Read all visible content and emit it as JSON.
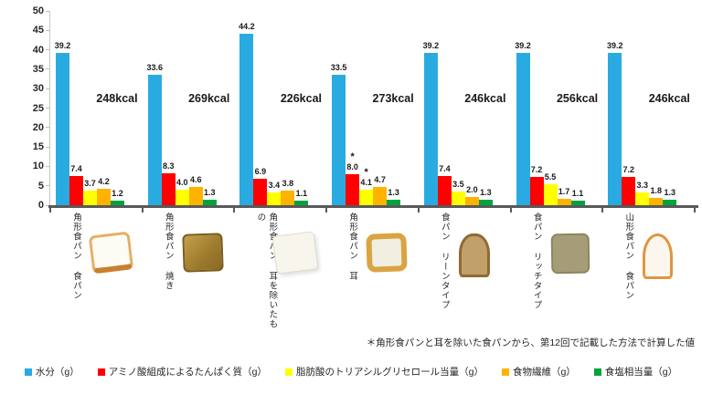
{
  "chart_data": {
    "type": "bar",
    "title": "",
    "xlabel": "",
    "ylabel": "",
    "ylim": [
      0,
      50
    ],
    "yticks": [
      0,
      5,
      10,
      15,
      20,
      25,
      30,
      35,
      40,
      45,
      50
    ],
    "grid": false,
    "legend_position": "bottom",
    "categories": [
      {
        "label": "角形食パン 食パン",
        "kcal": "248kcal",
        "bread_icon": "square-white-bread-icon"
      },
      {
        "label": "角形食パン 焼き",
        "kcal": "269kcal",
        "bread_icon": "toasted-bread-icon"
      },
      {
        "label": "角形食パン 耳を除いたもの",
        "kcal": "226kcal",
        "bread_icon": "crustless-bread-icon"
      },
      {
        "label": "角形食パン 耳",
        "kcal": "273kcal",
        "bread_icon": "bread-crust-icon"
      },
      {
        "label": "食パン リーンタイプ",
        "kcal": "246kcal",
        "bread_icon": "lean-bread-icon"
      },
      {
        "label": "食パン リッチタイプ",
        "kcal": "256kcal",
        "bread_icon": "rich-bread-icon"
      },
      {
        "label": "山形食パン 食パン",
        "kcal": "246kcal",
        "bread_icon": "mountain-bread-icon"
      }
    ],
    "series": [
      {
        "name": "水分（g）",
        "color": "#29ABE2",
        "values": [
          39.2,
          33.6,
          44.2,
          33.5,
          39.2,
          39.2,
          39.2
        ],
        "labels": [
          "39.2",
          "33.6",
          "44.2",
          "33.5",
          "39.2",
          "39.2",
          "39.2"
        ],
        "asterisk_at": []
      },
      {
        "name": "アミノ酸組成によるたんぱく質（g）",
        "color": "#FF0000",
        "values": [
          7.4,
          8.3,
          6.9,
          8.0,
          7.4,
          7.2,
          7.2
        ],
        "labels": [
          "7.4",
          "8.3",
          "6.9",
          "8.0",
          "7.4",
          "7.2",
          "7.2"
        ],
        "asterisk_at": [
          3
        ]
      },
      {
        "name": "脂肪酸のトリアシルグリセロール当量（g）",
        "color": "#FFFF00",
        "values": [
          3.7,
          4.0,
          3.4,
          4.1,
          3.5,
          5.5,
          3.3
        ],
        "labels": [
          "3.7",
          "4.0",
          "3.4",
          "4.1",
          "3.5",
          "5.5",
          "3.3"
        ],
        "asterisk_at": [
          3
        ]
      },
      {
        "name": "食物繊維（g）",
        "color": "#FFB300",
        "values": [
          4.2,
          4.6,
          3.8,
          4.7,
          2.0,
          1.7,
          1.8
        ],
        "labels": [
          "4.2",
          "4.6",
          "3.8",
          "4.7",
          "2.0",
          "1.7",
          "1.8"
        ],
        "asterisk_at": []
      },
      {
        "name": "食塩相当量（g）",
        "color": "#00A43E",
        "values": [
          1.2,
          1.3,
          1.1,
          1.3,
          1.3,
          1.1,
          1.3
        ],
        "labels": [
          "1.2",
          "1.3",
          "1.1",
          "1.3",
          "1.3",
          "1.1",
          "1.3"
        ],
        "asterisk_at": []
      }
    ]
  },
  "footnote": "＊角形食パンと耳を除いた食パンから、第12回で記載した方法で計算した値"
}
